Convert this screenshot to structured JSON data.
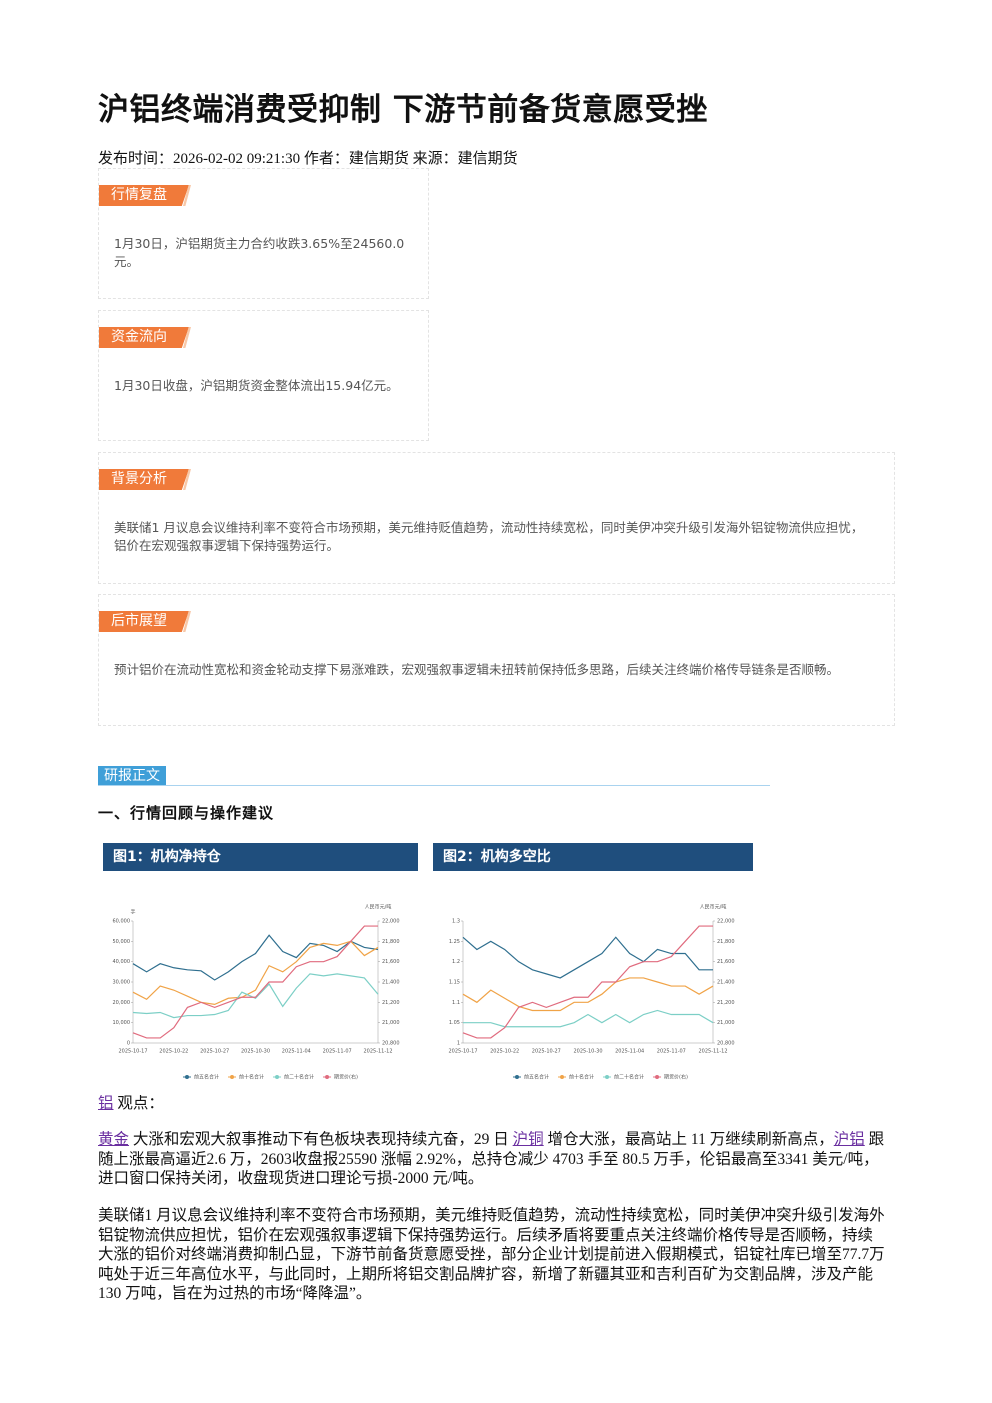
{
  "header": {
    "title": "沪铝终端消费受抑制 下游节前备货意愿受挫",
    "meta": "发布时间：2026-02-02 09:21:30 作者：建信期货 来源：建信期货"
  },
  "sections": [
    {
      "label": "行情复盘",
      "text": "1月30日，沪铝期货主力合约收跌3.65%至24560.0元。"
    },
    {
      "label": "资金流向",
      "text": "1月30日收盘，沪铝期货资金整体流出15.94亿元。"
    },
    {
      "label": "背景分析",
      "text": "美联储1 月议息会议维持利率不变符合市场预期，美元维持贬值趋势，流动性持续宽松，同时美伊冲突升级引发海外铝锭物流供应担忧，铝价在宏观强叙事逻辑下保持强势运行。"
    },
    {
      "label": "后市展望",
      "text": "预计铝价在流动性宽松和资金轮动支撑下易涨难跌，宏观强叙事逻辑未扭转前保持低多思路，后续关注终端价格传导链条是否顺畅。"
    }
  ],
  "report": {
    "label": "研报正文",
    "heading": "一、行情回顾与操作建议",
    "view": [
      {
        "text": "铝",
        "link": true
      },
      {
        "text": " 观点："
      }
    ],
    "paragraphs": [
      [
        {
          "text": "黄金",
          "link": true
        },
        {
          "text": " 大涨和宏观大叙事推动下有色板块表现持续亢奋，29 日 "
        },
        {
          "text": "沪铜",
          "link": true
        },
        {
          "text": " 增仓大涨，最高站上 11 万继续刷新高点，"
        },
        {
          "text": "沪铝",
          "link": true
        },
        {
          "text": " 跟随上涨最高逼近2.6 万，2603收盘报25590 涨幅 2.92%，总持仓减少 4703 手至 80.5 万手，伦铝最高至3341 美元/吨，进口窗口保持关闭，收盘现货进口理论亏损-2000 元/吨。"
        }
      ],
      [
        {
          "text": "美联储1 月议息会议维持利率不变符合市场预期，美元维持贬值趋势，流动性持续宽松，同时美伊冲突升级引发海外铝锭物流供应担忧，铝价在宏观强叙事逻辑下保持强势运行。后续矛盾将要重点关注终端价格传导是否顺畅，持续大涨的铝价对终端消费抑制凸显，下游节前备货意愿受挫，部分企业计划提前进入假期模式，铝锭社库已增至77.7万吨处于近三年高位水平，与此同时，上期所将铝交割品牌扩容，新增了新疆其亚和吉利百矿为交割品牌，涉及产能 130 万吨，旨在为过热的市场“降降温”。"
        }
      ]
    ]
  },
  "chart_data": [
    {
      "type": "line",
      "title": "图1：机构净持仓",
      "y_label": "手",
      "y2_label": "人民币元/吨",
      "categories": [
        "2025-10-17",
        null,
        null,
        "2025-10-22",
        null,
        null,
        "2025-10-27",
        null,
        null,
        "2025-10-30",
        null,
        null,
        "2025-11-04",
        null,
        null,
        "2025-11-07",
        null,
        null,
        "2025-11-12"
      ],
      "ylim": [
        0,
        60000
      ],
      "yticks": [
        0,
        {
          "value": 10000,
          "label": "10,000"
        },
        {
          "value": 20000,
          "label": "20,000"
        },
        {
          "value": 30000,
          "label": "30,000"
        },
        {
          "value": 40000,
          "label": "40,000"
        },
        {
          "value": 50000,
          "label": "50,000"
        },
        {
          "value": 60000,
          "label": "60,000"
        }
      ],
      "y2lim": [
        20800,
        22000
      ],
      "y2ticks": [
        {
          "value": 20800,
          "label": "20,800"
        },
        {
          "value": 21000,
          "label": "21,000"
        },
        {
          "value": 21200,
          "label": "21,200"
        },
        {
          "value": 21400,
          "label": "21,400"
        },
        {
          "value": 21600,
          "label": "21,600"
        },
        {
          "value": 21800,
          "label": "21,800"
        },
        {
          "value": 22000,
          "label": "22,000"
        }
      ],
      "series": [
        {
          "name": "前五名合计",
          "color": "#2f6f8f",
          "values": [
            39000,
            35000,
            39000,
            37000,
            36000,
            35500,
            31000,
            35000,
            40000,
            44000,
            53000,
            45000,
            42000,
            49000,
            48000,
            45000,
            50000,
            47000,
            46000
          ]
        },
        {
          "name": "前十名合计",
          "color": "#f0a347",
          "values": [
            25000,
            21500,
            28000,
            26000,
            23000,
            20000,
            19000,
            22000,
            22500,
            26000,
            38000,
            35000,
            40000,
            47000,
            49000,
            48000,
            50000,
            43000,
            47000
          ]
        },
        {
          "name": "前二十名合计",
          "color": "#7ccfc6",
          "values": [
            15000,
            14500,
            15000,
            12500,
            13500,
            13500,
            14000,
            16000,
            25000,
            22000,
            29000,
            18000,
            27000,
            34000,
            33000,
            34000,
            33000,
            32000,
            24000
          ]
        },
        {
          "name": "期货价(右)",
          "color": "#e06b7e",
          "axis": "y2",
          "values": [
            20900,
            20850,
            20850,
            20950,
            21150,
            21200,
            21150,
            21200,
            21250,
            21250,
            21400,
            21400,
            21550,
            21600,
            21600,
            21650,
            21800,
            21950,
            21950
          ]
        }
      ]
    },
    {
      "type": "line",
      "title": "图2：机构多空比",
      "y2_label": "人民币元/吨",
      "categories": [
        "2025-10-17",
        null,
        null,
        "2025-10-22",
        null,
        null,
        "2025-10-27",
        null,
        null,
        "2025-10-30",
        null,
        null,
        "2025-11-04",
        null,
        null,
        "2025-11-07",
        null,
        null,
        "2025-11-12"
      ],
      "ylim": [
        1,
        1.3
      ],
      "yticks": [
        1,
        1.05,
        1.1,
        1.15,
        1.2,
        1.25,
        1.3
      ],
      "y2lim": [
        20800,
        22000
      ],
      "y2ticks": [
        {
          "value": 20800,
          "label": "20,800"
        },
        {
          "value": 21000,
          "label": "21,000"
        },
        {
          "value": 21200,
          "label": "21,200"
        },
        {
          "value": 21400,
          "label": "21,400"
        },
        {
          "value": 21600,
          "label": "21,600"
        },
        {
          "value": 21800,
          "label": "21,800"
        },
        {
          "value": 22000,
          "label": "22,000"
        }
      ],
      "series": [
        {
          "name": "前五名合计",
          "color": "#2f6f8f",
          "values": [
            1.26,
            1.23,
            1.25,
            1.23,
            1.2,
            1.18,
            1.17,
            1.16,
            1.18,
            1.2,
            1.22,
            1.26,
            1.22,
            1.2,
            1.23,
            1.22,
            1.22,
            1.18,
            1.18
          ]
        },
        {
          "name": "前十名合计",
          "color": "#f0a347",
          "values": [
            1.12,
            1.1,
            1.13,
            1.11,
            1.09,
            1.08,
            1.08,
            1.08,
            1.1,
            1.1,
            1.12,
            1.15,
            1.16,
            1.16,
            1.15,
            1.14,
            1.14,
            1.12,
            1.14
          ]
        },
        {
          "name": "前二十名合计",
          "color": "#7ccfc6",
          "values": [
            1.05,
            1.05,
            1.05,
            1.04,
            1.04,
            1.04,
            1.04,
            1.04,
            1.05,
            1.07,
            1.05,
            1.07,
            1.05,
            1.07,
            1.08,
            1.07,
            1.07,
            1.07,
            1.05
          ]
        },
        {
          "name": "期货价(右)",
          "color": "#e06b7e",
          "axis": "y2",
          "values": [
            20900,
            20850,
            20850,
            20950,
            21150,
            21200,
            21150,
            21200,
            21250,
            21250,
            21400,
            21400,
            21550,
            21600,
            21600,
            21650,
            21800,
            21950,
            21950
          ]
        }
      ]
    }
  ]
}
